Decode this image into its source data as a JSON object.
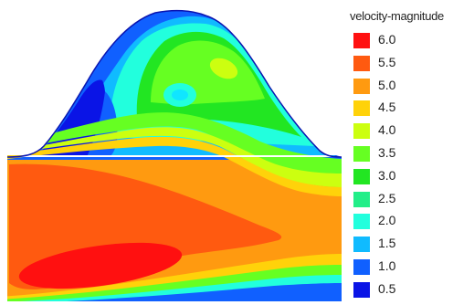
{
  "chart_data": {
    "type": "heatmap",
    "title": "velocity-magnitude",
    "colorbar": {
      "label": "velocity-magnitude",
      "ticks": [
        "6.0",
        "5.5",
        "5.0",
        "4.5",
        "4.0",
        "3.5",
        "3.0",
        "2.5",
        "2.0",
        "1.5",
        "1.0",
        "0.5"
      ],
      "colors": [
        "#ff1010",
        "#ff5a10",
        "#ff9a10",
        "#ffd20a",
        "#ccff10",
        "#66ff22",
        "#22e622",
        "#22ee88",
        "#22ffdd",
        "#10bbff",
        "#1060ff",
        "#0a14e6"
      ],
      "range": [
        0.5,
        6.0
      ]
    },
    "description_regions": [
      {
        "region": "lower-left core",
        "value": 6.0
      },
      {
        "region": "lower channel band",
        "value": 5.5
      },
      {
        "region": "upper channel band",
        "value": 5.0
      },
      {
        "region": "hill crest",
        "value": 3.5
      },
      {
        "region": "hill center spot",
        "value": 2.0
      },
      {
        "region": "hill left edge",
        "value": 1.0
      }
    ]
  }
}
